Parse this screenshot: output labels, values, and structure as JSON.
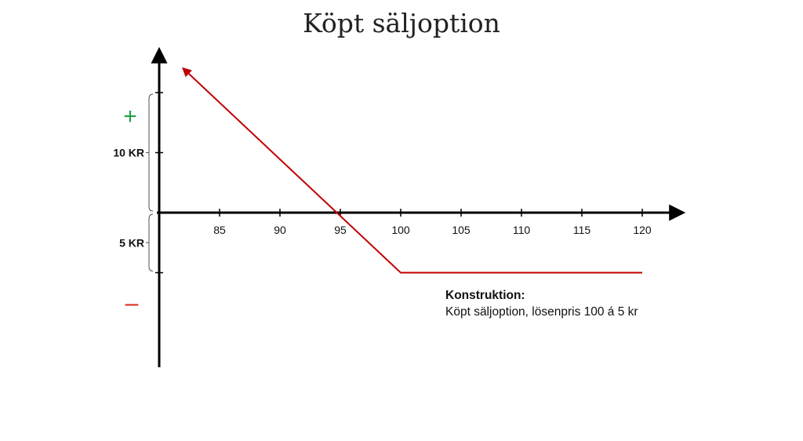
{
  "chart_data": {
    "type": "line",
    "title": "Köpt säljoption",
    "x_ticks": [
      85,
      90,
      95,
      100,
      105,
      110,
      115,
      120
    ],
    "series": [
      {
        "color": "#c00000",
        "points": [
          [
            82,
            12
          ],
          [
            100,
            -5
          ],
          [
            120,
            -5
          ]
        ]
      }
    ],
    "y_brackets": [
      {
        "label": "10 KR",
        "from": 0,
        "to": 10
      },
      {
        "label": "5 KR",
        "from": -5,
        "to": 0
      }
    ],
    "y_ticks": [
      -5,
      5,
      10
    ],
    "signs": {
      "plus": "+",
      "minus": "–",
      "plus_color": "#22a04b",
      "minus_color": "#d9261c"
    },
    "annotation": {
      "heading": "Konstruktion:",
      "text": "Köpt säljoption, lösenpris 100 á 5 kr"
    }
  }
}
